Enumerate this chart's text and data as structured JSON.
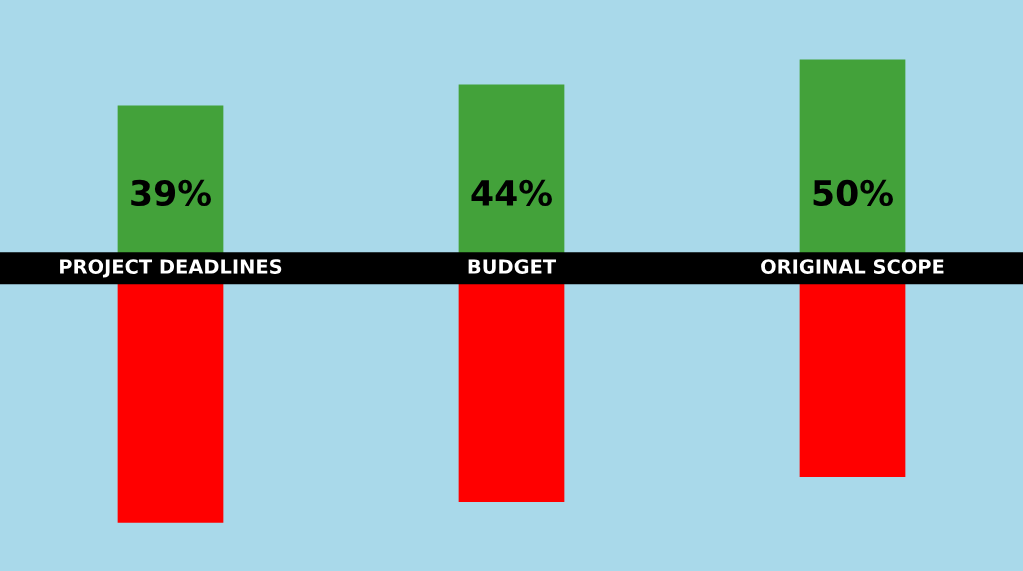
{
  "chart_data": {
    "type": "bar",
    "categories": [
      "PROJECT DEADLINES",
      "BUDGET",
      "ORIGINAL SCOPE"
    ],
    "series": [
      {
        "color": "#43a23a",
        "values": [
          39,
          44,
          50
        ],
        "value_labels": [
          "39%",
          "44%",
          "50%"
        ]
      },
      {
        "color": "#ff0000",
        "values": [
          -61,
          -56,
          -50
        ]
      }
    ],
    "stacked": true,
    "legend": false
  }
}
